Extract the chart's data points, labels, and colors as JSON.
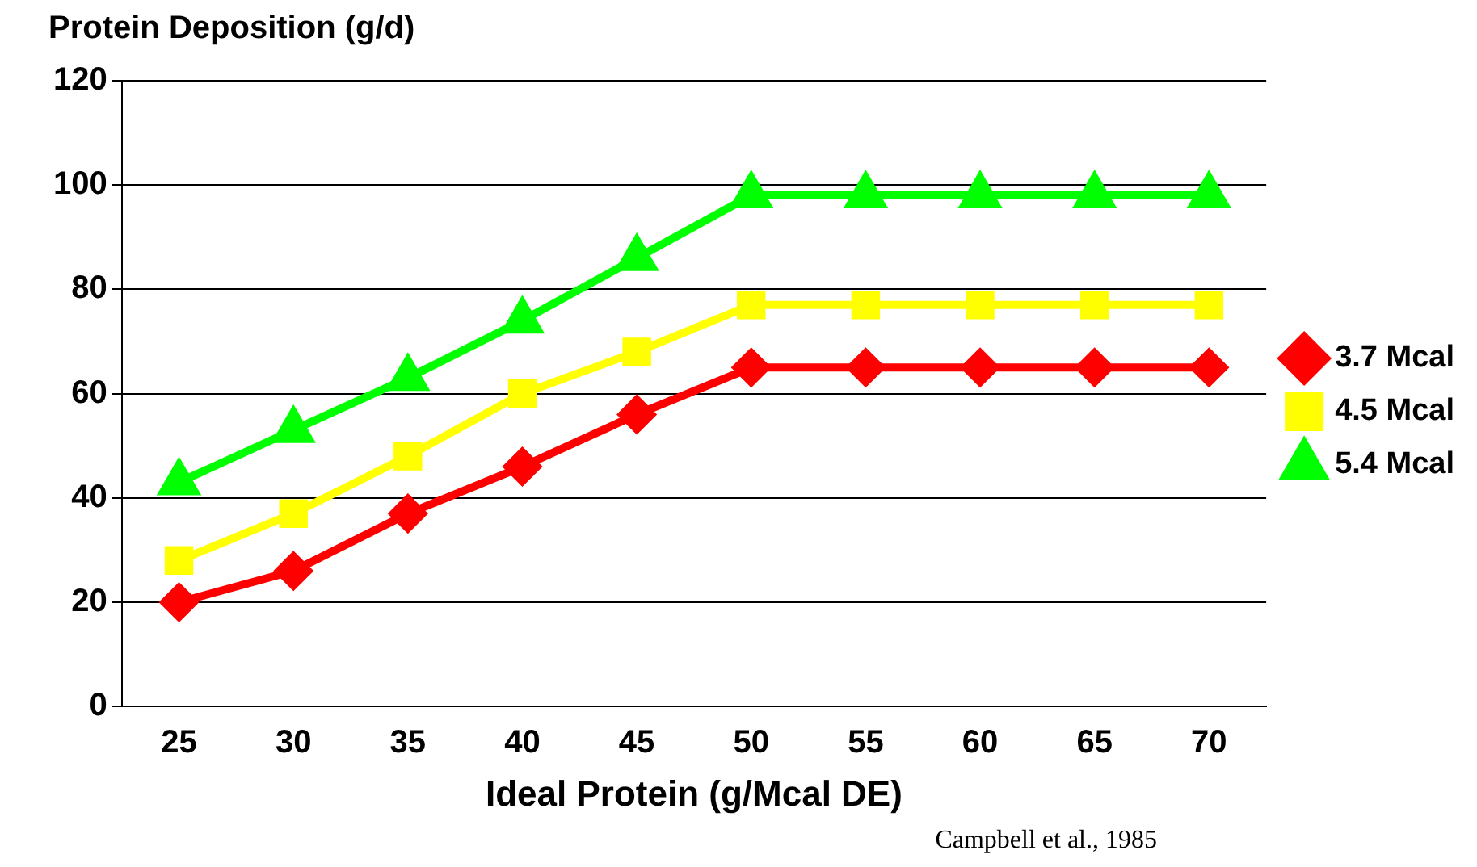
{
  "chart_data": {
    "type": "line",
    "ylabel": "Protein Deposition (g/d)",
    "xlabel": "Ideal Protein (g/Mcal DE)",
    "categories": [
      "25",
      "30",
      "35",
      "40",
      "45",
      "50",
      "55",
      "60",
      "65",
      "70"
    ],
    "series": [
      {
        "name": "3.7 Mcal",
        "color": "#ff0000",
        "marker": "diamond",
        "values": [
          20,
          26,
          37,
          46,
          56,
          65,
          65,
          65,
          65,
          65
        ]
      },
      {
        "name": "4.5 Mcal",
        "color": "#ffff00",
        "marker": "square",
        "values": [
          28,
          37,
          48,
          60,
          68,
          77,
          77,
          77,
          77,
          77
        ]
      },
      {
        "name": "5.4 Mcal",
        "color": "#00ff00",
        "marker": "triangle",
        "values": [
          43,
          53,
          63,
          74,
          86,
          98,
          98,
          98,
          98,
          98
        ]
      }
    ],
    "ylim": [
      0,
      120
    ],
    "yticks": [
      0,
      20,
      40,
      60,
      80,
      100,
      120
    ],
    "grid": "y",
    "legend": "right",
    "line_style": "solid",
    "annotations": [
      "Campbell et al., 1985"
    ]
  }
}
